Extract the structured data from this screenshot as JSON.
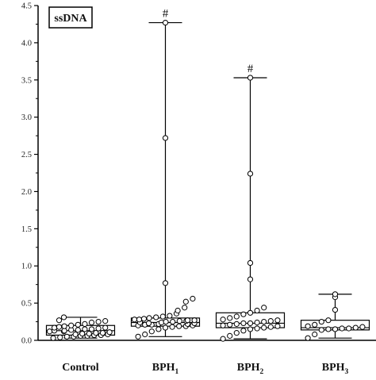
{
  "chart_data": {
    "type": "box",
    "tag": "ssDNA",
    "ylim": [
      0,
      4.5
    ],
    "yticks": [
      "0.0",
      "0.5",
      "1.0",
      "1.5",
      "2.0",
      "2.5",
      "3.0",
      "3.5",
      "4.0",
      "4.5"
    ],
    "grid": false,
    "groups": [
      {
        "name": "Control",
        "base": "Control",
        "sub": "",
        "min": 0.03,
        "q1": 0.07,
        "median": 0.13,
        "q3": 0.2,
        "max": 0.31,
        "annotation": "",
        "points": [
          0.03,
          0.04,
          0.05,
          0.05,
          0.06,
          0.06,
          0.07,
          0.07,
          0.08,
          0.08,
          0.09,
          0.09,
          0.1,
          0.1,
          0.11,
          0.12,
          0.12,
          0.13,
          0.13,
          0.14,
          0.14,
          0.15,
          0.15,
          0.16,
          0.17,
          0.17,
          0.18,
          0.19,
          0.2,
          0.21,
          0.22,
          0.24,
          0.25,
          0.26,
          0.27,
          0.31
        ]
      },
      {
        "name": "BPH1",
        "base": "BPH",
        "sub": "1",
        "min": 0.05,
        "q1": 0.19,
        "median": 0.24,
        "q3": 0.3,
        "max": 4.27,
        "annotation": "#",
        "points": [
          0.05,
          0.08,
          0.12,
          0.15,
          0.17,
          0.18,
          0.19,
          0.19,
          0.2,
          0.2,
          0.21,
          0.21,
          0.22,
          0.22,
          0.23,
          0.23,
          0.24,
          0.24,
          0.25,
          0.25,
          0.26,
          0.26,
          0.27,
          0.27,
          0.28,
          0.28,
          0.29,
          0.3,
          0.31,
          0.32,
          0.33,
          0.36,
          0.4,
          0.44,
          0.52,
          0.56,
          0.77,
          2.72,
          4.27
        ]
      },
      {
        "name": "BPH2",
        "base": "BPH",
        "sub": "2",
        "min": 0.02,
        "q1": 0.17,
        "median": 0.23,
        "q3": 0.37,
        "max": 3.53,
        "annotation": "#",
        "points": [
          0.02,
          0.06,
          0.1,
          0.13,
          0.15,
          0.16,
          0.17,
          0.18,
          0.19,
          0.2,
          0.21,
          0.22,
          0.23,
          0.23,
          0.24,
          0.25,
          0.26,
          0.27,
          0.28,
          0.3,
          0.32,
          0.35,
          0.37,
          0.4,
          0.44,
          0.82,
          1.04,
          2.24,
          3.53
        ]
      },
      {
        "name": "BPH3",
        "base": "BPH",
        "sub": "3",
        "min": 0.03,
        "q1": 0.14,
        "median": 0.17,
        "q3": 0.27,
        "max": 0.62,
        "annotation": "",
        "points": [
          0.03,
          0.08,
          0.14,
          0.15,
          0.15,
          0.16,
          0.16,
          0.17,
          0.18,
          0.19,
          0.21,
          0.25,
          0.27,
          0.41,
          0.58,
          0.62
        ]
      }
    ]
  }
}
